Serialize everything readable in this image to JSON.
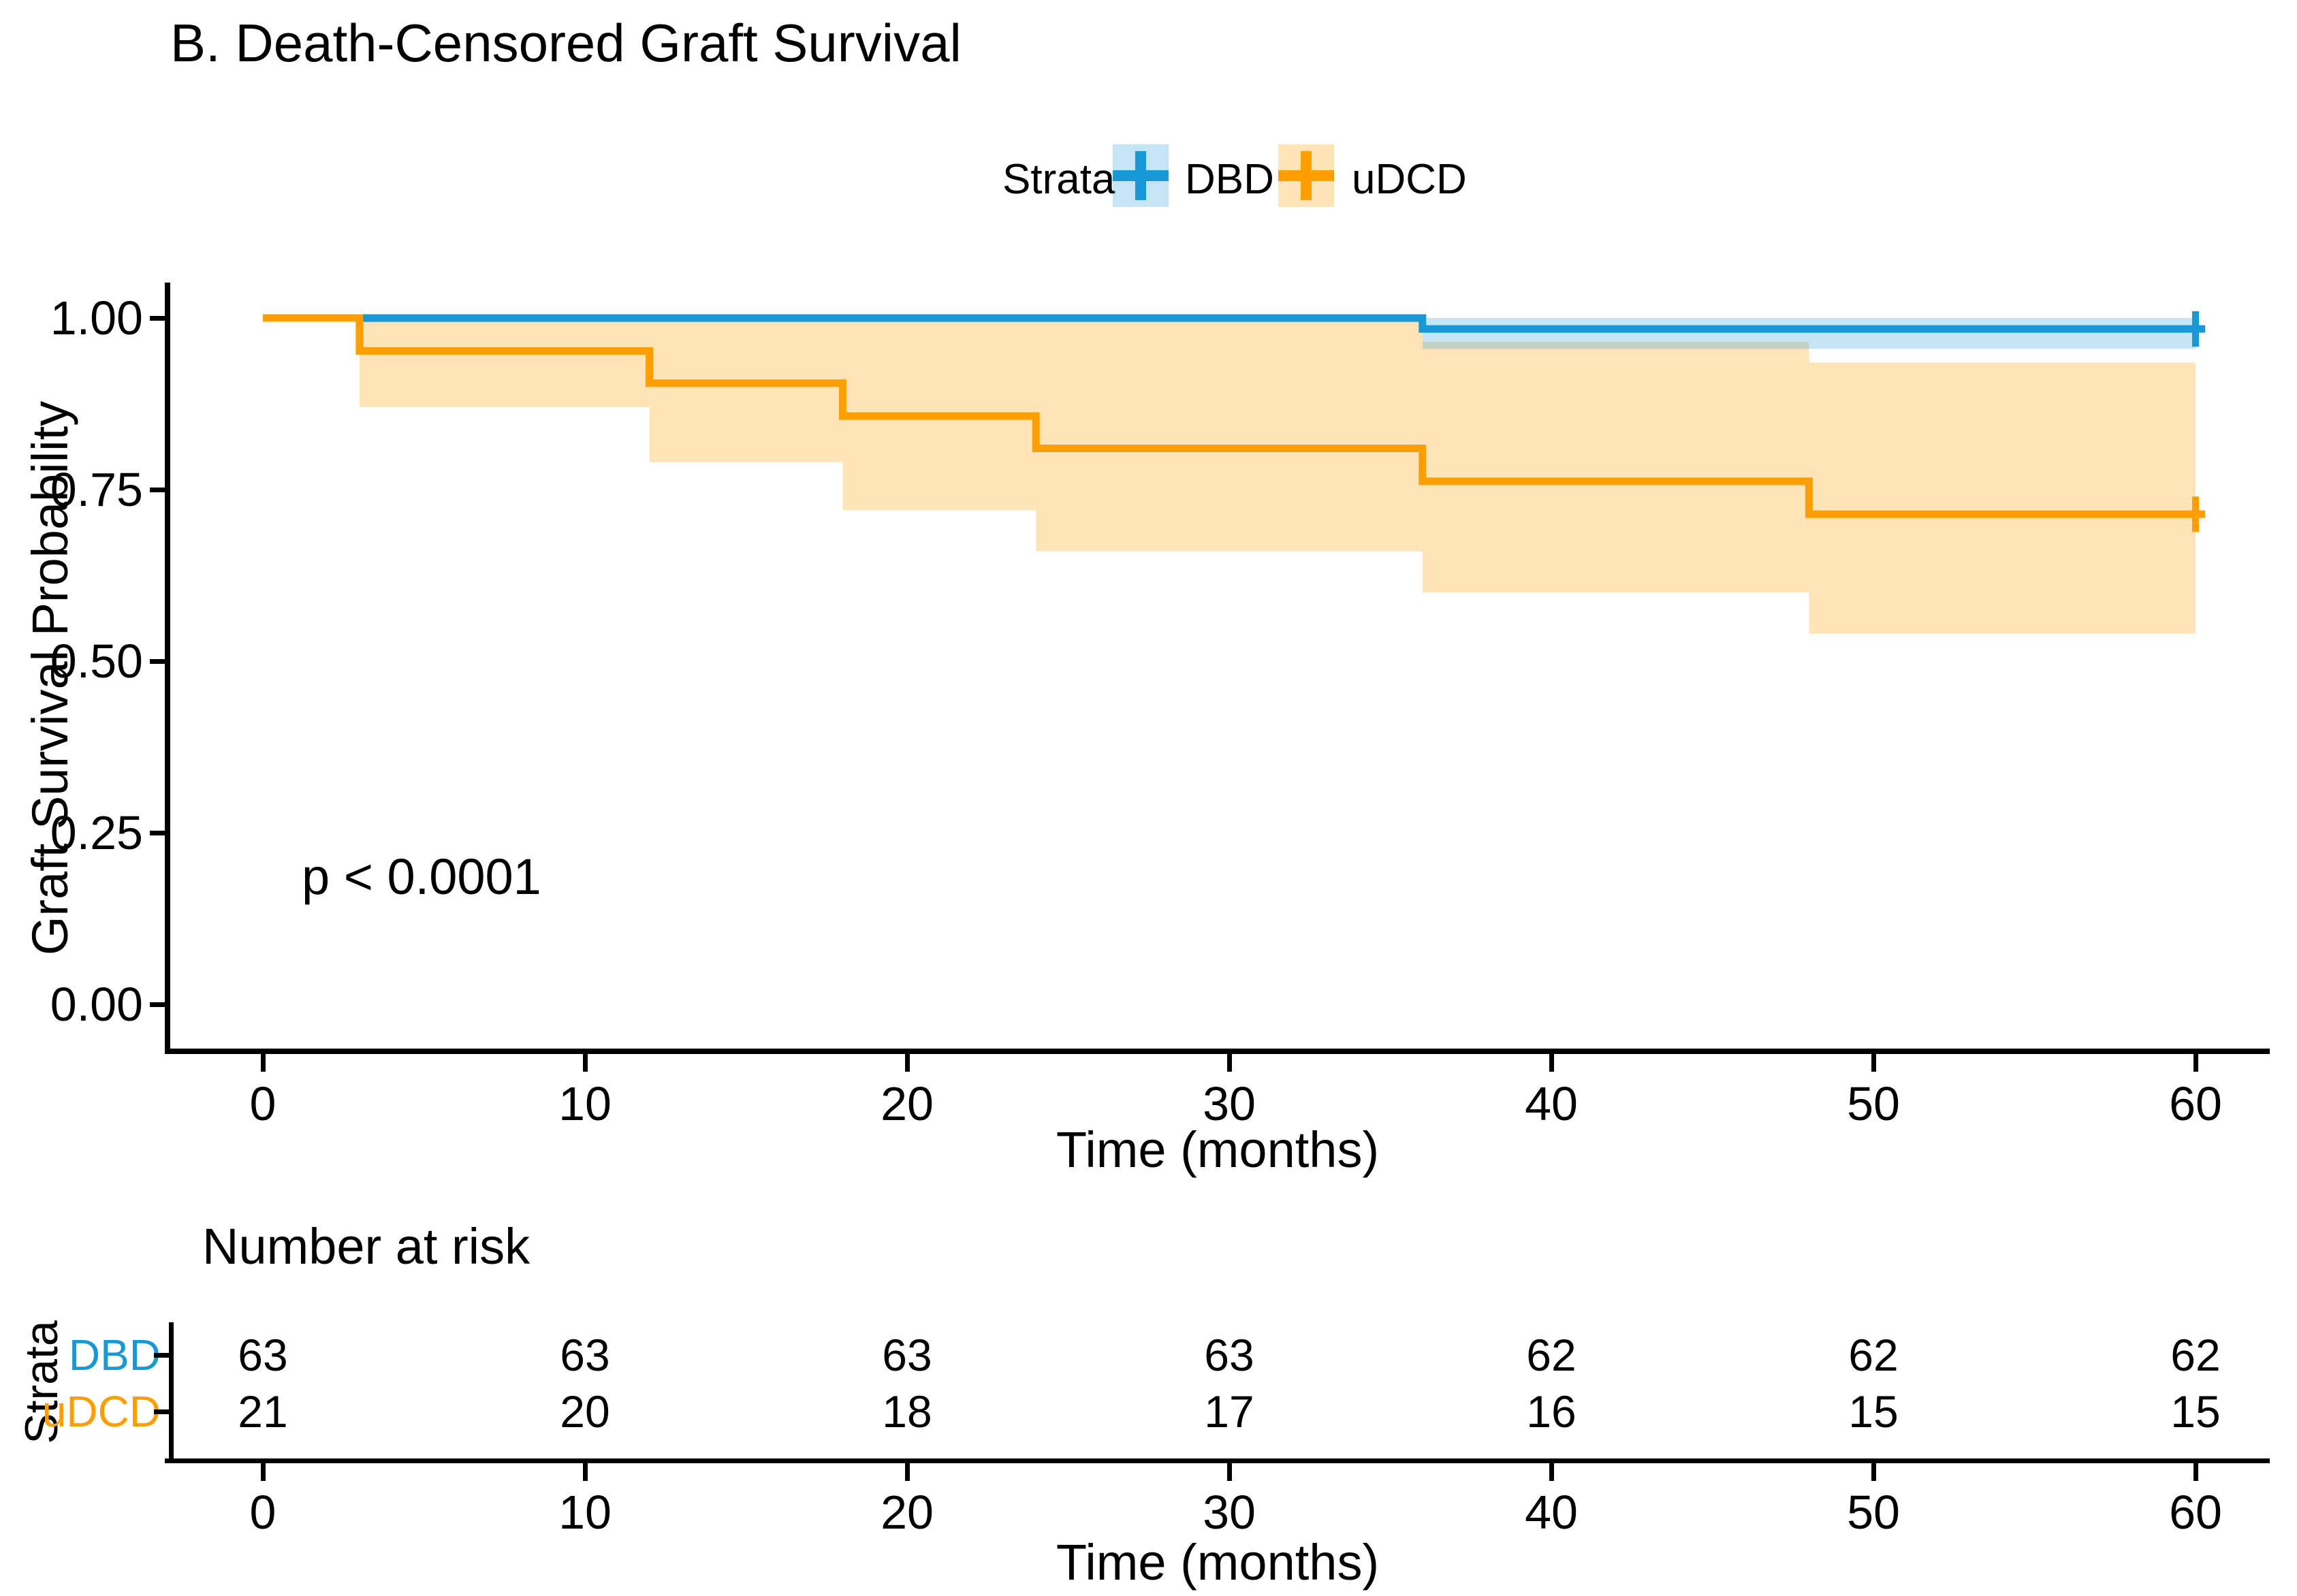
{
  "chart_data": {
    "type": "line",
    "subtype": "kaplan-meier-step",
    "title": "B. Death-Censored Graft Survival",
    "xlabel": "Time (months)",
    "ylabel": "Graft Survival Probability",
    "pvalue_text": "p < 0.0001",
    "xlim": [
      0,
      62
    ],
    "ylim": [
      0.0,
      1.05
    ],
    "grid": "off",
    "legend": {
      "title": "Strata",
      "position": "top",
      "entries": [
        {
          "label": "DBD",
          "color": "#1699d6",
          "fill": "rgba(22,153,214,0.25)"
        },
        {
          "label": "uDCD",
          "color": "#ff9e00",
          "fill": "rgba(255,159,0,0.28)"
        }
      ]
    },
    "xticks": [
      0,
      10,
      20,
      30,
      40,
      50,
      60
    ],
    "yticks": [
      {
        "v": 1.0,
        "label": "1.00"
      },
      {
        "v": 0.75,
        "label": "0.75"
      },
      {
        "v": 0.5,
        "label": "0.50"
      },
      {
        "v": 0.25,
        "label": "0.25"
      },
      {
        "v": 0.0,
        "label": "0.00"
      }
    ],
    "series": [
      {
        "name": "DBD",
        "color": "#1699d6",
        "fill": "rgba(22,153,214,0.25)",
        "points": [
          [
            0,
            1.0
          ],
          [
            36,
            1.0
          ],
          [
            36,
            0.984
          ],
          [
            60.3,
            0.984
          ]
        ],
        "censors": [
          {
            "t": 60,
            "s": 0.984
          }
        ],
        "ribbon": [
          {
            "t0": 3,
            "t1": 36,
            "lo": 0.9935,
            "hi": 1.0
          },
          {
            "t0": 36,
            "t1": 60,
            "lo": 0.955,
            "hi": 1.0
          }
        ]
      },
      {
        "name": "uDCD",
        "color": "#ff9e00",
        "fill": "rgba(255,159,0,0.28)",
        "points": [
          [
            0,
            1.0
          ],
          [
            3,
            1.0
          ],
          [
            3,
            0.952
          ],
          [
            12,
            0.952
          ],
          [
            12,
            0.905
          ],
          [
            18,
            0.905
          ],
          [
            18,
            0.857
          ],
          [
            24,
            0.857
          ],
          [
            24,
            0.81
          ],
          [
            36,
            0.81
          ],
          [
            36,
            0.762
          ],
          [
            48,
            0.762
          ],
          [
            48,
            0.714
          ],
          [
            60.3,
            0.714
          ]
        ],
        "censors": [
          {
            "t": 60,
            "s": 0.714
          }
        ],
        "ribbon": [
          {
            "t0": 3,
            "t1": 12,
            "lo": 0.87,
            "hi": 1.0
          },
          {
            "t0": 12,
            "t1": 18,
            "lo": 0.79,
            "hi": 1.0
          },
          {
            "t0": 18,
            "t1": 24,
            "lo": 0.72,
            "hi": 1.0
          },
          {
            "t0": 24,
            "t1": 36,
            "lo": 0.66,
            "hi": 1.0
          },
          {
            "t0": 36,
            "t1": 48,
            "lo": 0.6,
            "hi": 0.965
          },
          {
            "t0": 48,
            "t1": 60,
            "lo": 0.54,
            "hi": 0.935
          }
        ]
      }
    ],
    "risk_table": {
      "title": "Number at risk",
      "ylabel": "Strata",
      "xlabel": "Time (months)",
      "times": [
        0,
        10,
        20,
        30,
        40,
        50,
        60
      ],
      "rows": [
        {
          "name": "DBD",
          "color": "#1699d6",
          "counts": [
            63,
            63,
            63,
            63,
            62,
            62,
            62
          ]
        },
        {
          "name": "uDCD",
          "color": "#ff9e00",
          "counts": [
            21,
            20,
            18,
            17,
            16,
            15,
            15
          ]
        }
      ]
    }
  }
}
